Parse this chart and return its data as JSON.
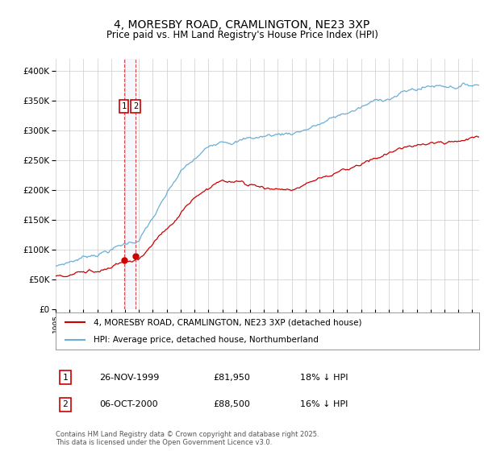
{
  "title": "4, MORESBY ROAD, CRAMLINGTON, NE23 3XP",
  "subtitle": "Price paid vs. HM Land Registry's House Price Index (HPI)",
  "legend_line1": "4, MORESBY ROAD, CRAMLINGTON, NE23 3XP (detached house)",
  "legend_line2": "HPI: Average price, detached house, Northumberland",
  "transaction1_date": "26-NOV-1999",
  "transaction1_price": "£81,950",
  "transaction1_hpi": "18% ↓ HPI",
  "transaction2_date": "06-OCT-2000",
  "transaction2_price": "£88,500",
  "transaction2_hpi": "16% ↓ HPI",
  "footnote": "Contains HM Land Registry data © Crown copyright and database right 2025.\nThis data is licensed under the Open Government Licence v3.0.",
  "ylim_min": 0,
  "ylim_max": 420000,
  "red_color": "#cc0000",
  "blue_color": "#6baed6",
  "grid_color": "#cccccc",
  "background_color": "#ffffff",
  "t1_year": 1999.917,
  "t2_year": 2000.75,
  "t1_price": 81950,
  "t2_price": 88500
}
